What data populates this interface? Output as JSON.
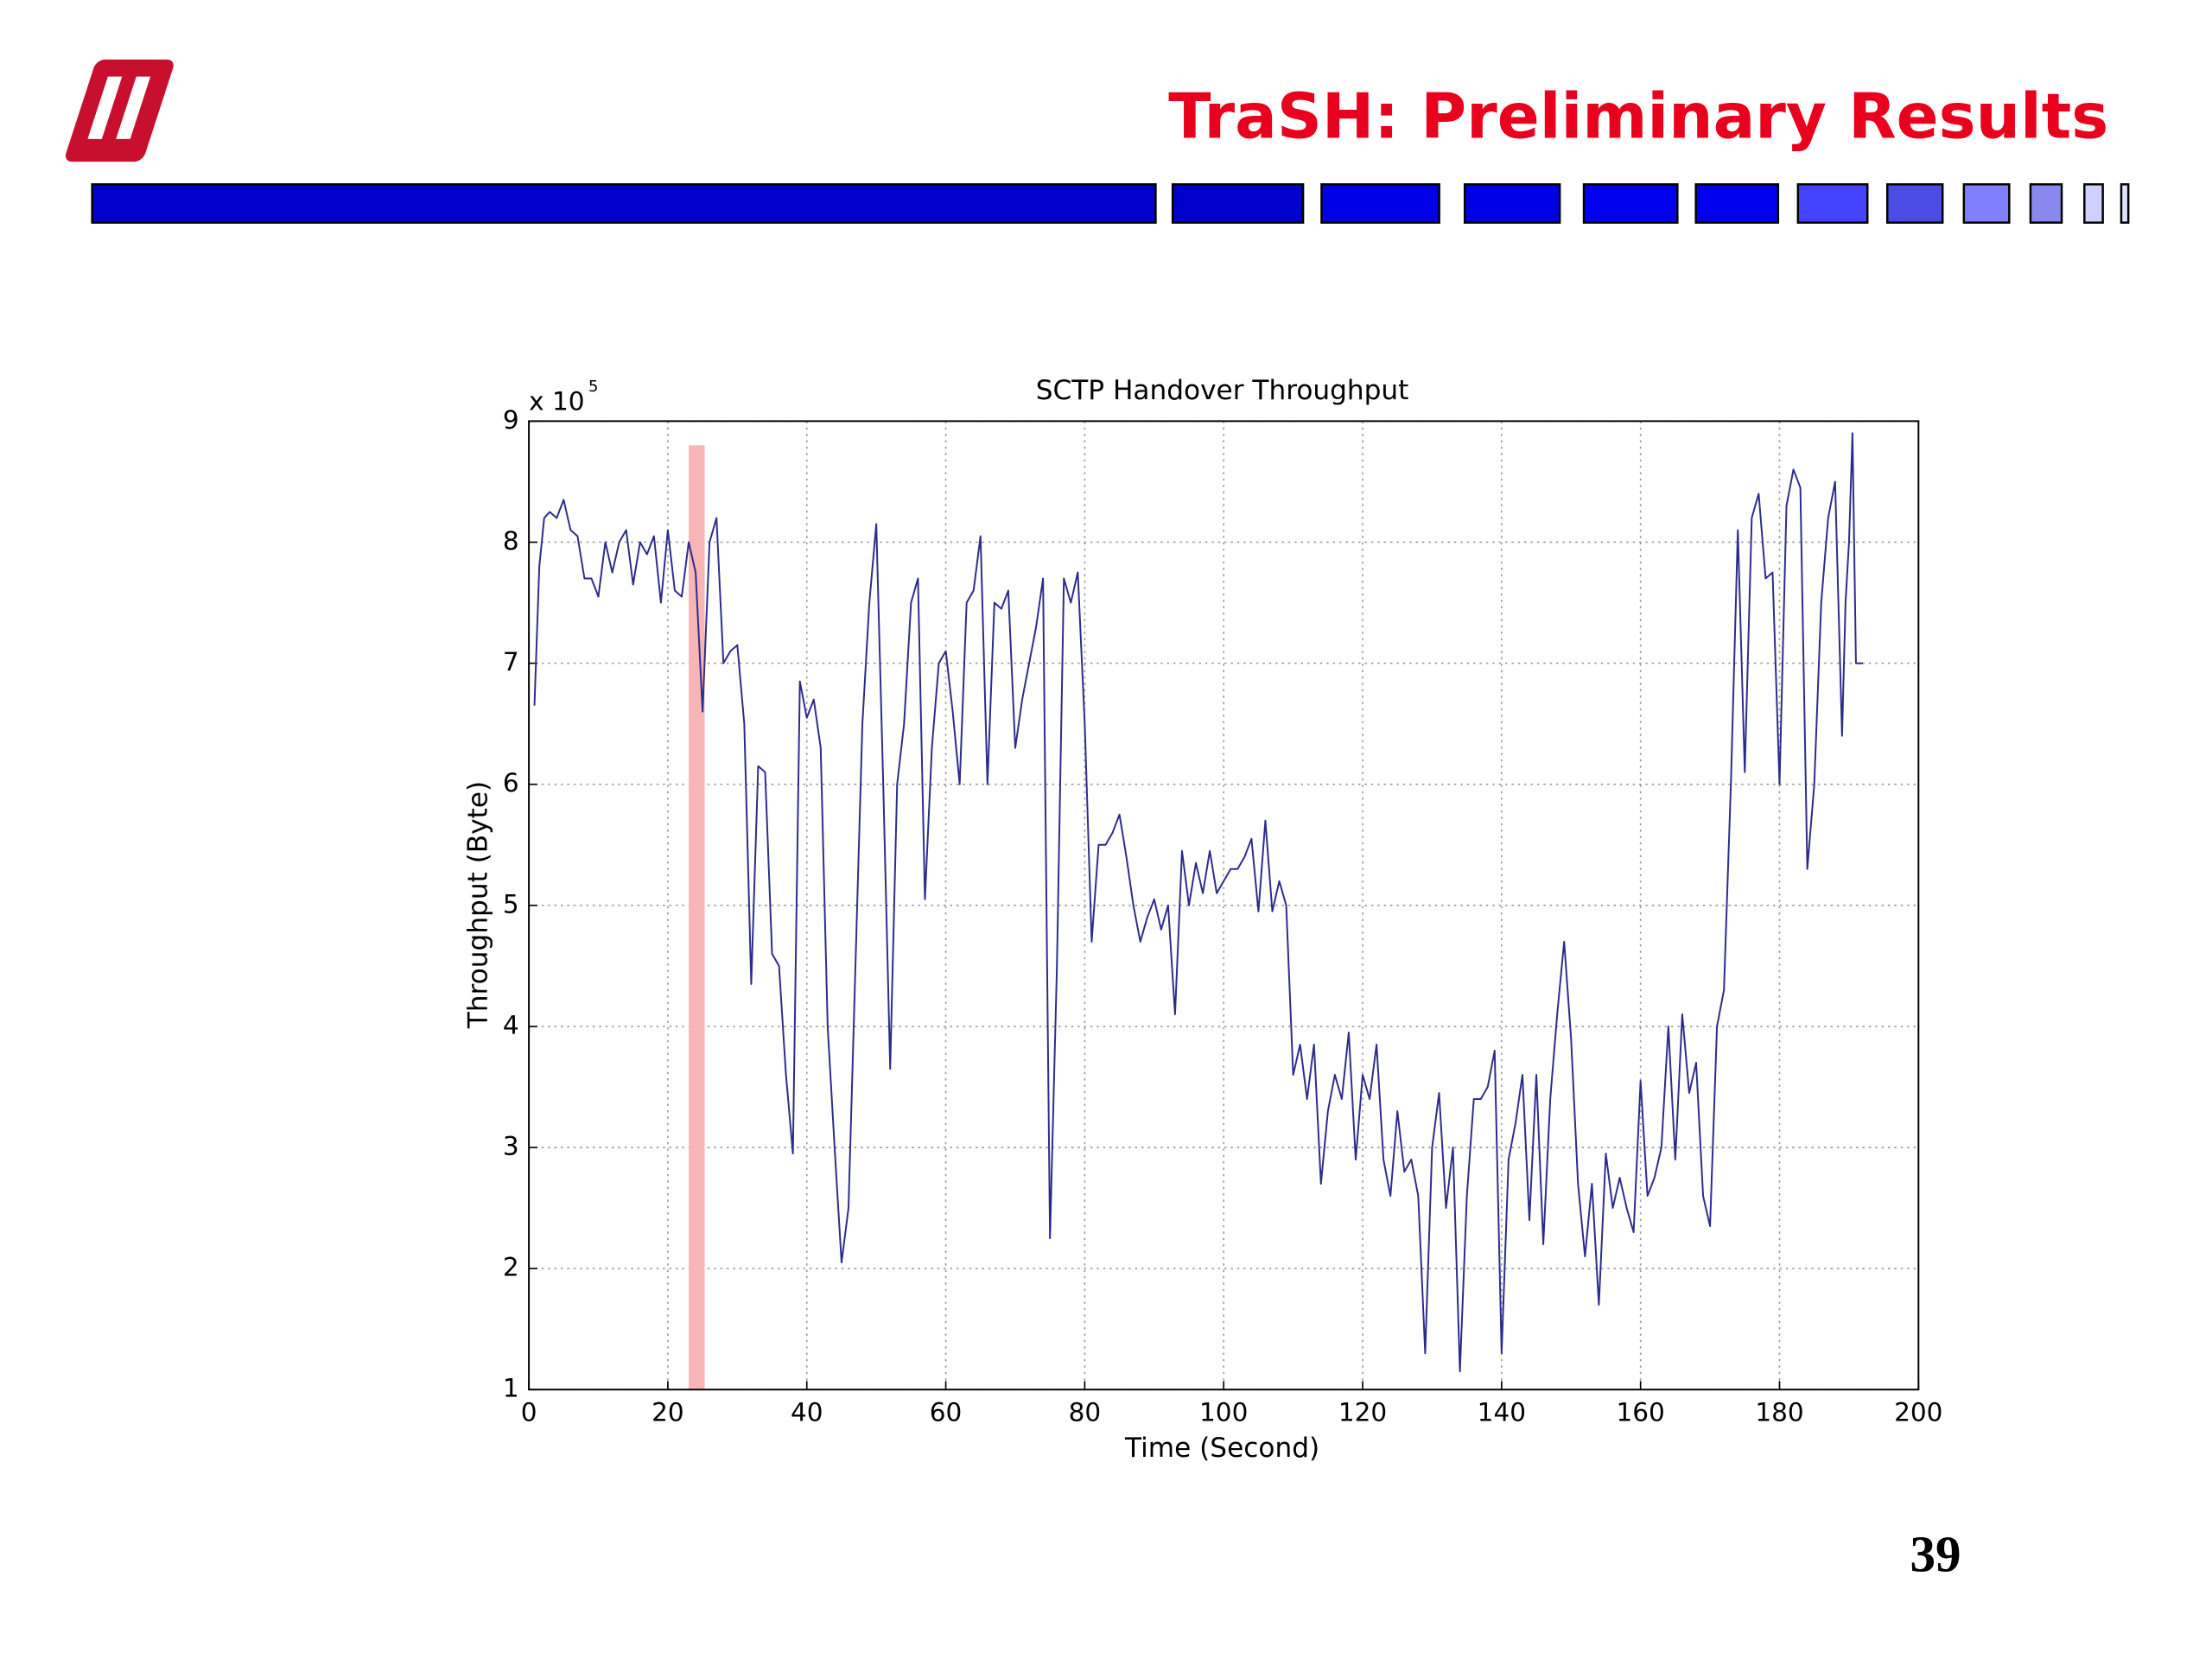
{
  "slide": {
    "title": "TraSH: Preliminary Results",
    "page_number": "39"
  },
  "chart_data": {
    "type": "line",
    "title": "SCTP Handover Throughput",
    "x_label": "Time (Second)",
    "y_label": "Throughput (Byte)",
    "y_scale_label": "x 10",
    "y_scale_exponent": "5",
    "xlim": [
      0,
      200
    ],
    "xticks": [
      0,
      20,
      40,
      60,
      80,
      100,
      120,
      140,
      160,
      180,
      200
    ],
    "ylim": [
      1,
      9
    ],
    "yticks": [
      1,
      2,
      3,
      4,
      5,
      6,
      7,
      8,
      9
    ],
    "grid": true,
    "highlight": {
      "x": [
        23,
        25.3
      ],
      "top": 8.8,
      "color": "#f7b5b5"
    },
    "x": [
      0.8,
      1.5,
      2.2,
      3,
      4,
      5,
      6,
      7,
      8,
      9,
      10,
      11,
      12,
      13,
      14,
      15,
      16,
      17,
      18,
      19,
      20,
      21,
      22,
      23,
      24,
      25,
      26,
      27,
      28,
      29,
      30,
      31,
      32,
      33,
      34,
      35,
      36,
      37,
      38,
      39,
      40,
      41,
      42,
      43,
      44,
      45,
      46,
      47,
      48,
      49,
      50,
      51,
      52,
      53,
      54,
      55,
      56,
      57,
      58,
      59,
      60,
      61,
      62,
      63,
      64,
      65,
      66,
      67,
      68,
      69,
      70,
      71,
      72,
      73,
      74,
      75,
      76,
      77,
      78,
      79,
      80,
      81,
      82,
      83,
      84,
      85,
      86,
      87,
      88,
      89,
      90,
      91,
      92,
      93,
      94,
      95,
      96,
      97,
      98,
      99,
      100,
      101,
      102,
      103,
      104,
      105,
      106,
      107,
      108,
      109,
      110,
      111,
      112,
      113,
      114,
      115,
      116,
      117,
      118,
      119,
      120,
      121,
      122,
      123,
      124,
      125,
      126,
      127,
      128,
      129,
      130,
      131,
      132,
      133,
      134,
      135,
      136,
      137,
      138,
      139,
      140,
      141,
      142,
      143,
      144,
      145,
      146,
      147,
      148,
      149,
      150,
      151,
      152,
      153,
      154,
      155,
      156,
      157,
      158,
      159,
      160,
      161,
      162,
      163,
      164,
      165,
      166,
      167,
      168,
      169,
      170,
      171,
      172,
      173,
      174,
      175,
      176,
      177,
      178,
      179,
      180,
      181,
      182,
      183,
      184,
      185,
      186,
      187,
      188,
      189,
      189.5,
      190,
      190.5,
      191,
      192
    ],
    "series": [
      {
        "color": "#2b2b8c",
        "values": [
          6.65,
          7.8,
          8.2,
          8.25,
          8.2,
          8.35,
          8.1,
          8.05,
          7.7,
          7.7,
          7.55,
          8.0,
          7.75,
          8.0,
          8.1,
          7.65,
          8.0,
          7.9,
          8.05,
          7.5,
          8.1,
          7.6,
          7.55,
          8.0,
          7.75,
          6.6,
          8.0,
          8.2,
          7.0,
          7.1,
          7.15,
          6.5,
          4.35,
          6.15,
          6.1,
          4.6,
          4.5,
          3.6,
          2.95,
          6.85,
          6.55,
          6.7,
          6.3,
          4.0,
          3.0,
          2.05,
          2.5,
          4.5,
          6.5,
          7.5,
          8.15,
          6.0,
          3.65,
          6.0,
          6.5,
          7.5,
          7.7,
          5.05,
          6.3,
          7.0,
          7.1,
          6.6,
          6.0,
          7.5,
          7.6,
          8.05,
          6.0,
          7.5,
          7.45,
          7.6,
          6.3,
          6.7,
          7.0,
          7.3,
          7.7,
          2.25,
          4.5,
          7.7,
          7.5,
          7.75,
          6.5,
          4.7,
          5.5,
          5.5,
          5.6,
          5.75,
          5.4,
          5.0,
          4.7,
          4.9,
          5.05,
          4.8,
          5.0,
          4.1,
          5.45,
          5.0,
          5.35,
          5.1,
          5.45,
          5.1,
          5.2,
          5.3,
          5.3,
          5.4,
          5.55,
          4.95,
          5.7,
          4.95,
          5.2,
          5.0,
          3.6,
          3.85,
          3.4,
          3.85,
          2.7,
          3.3,
          3.6,
          3.4,
          3.95,
          2.9,
          3.6,
          3.4,
          3.85,
          2.9,
          2.6,
          3.3,
          2.8,
          2.9,
          2.6,
          1.3,
          3.0,
          3.45,
          2.5,
          3.0,
          1.15,
          2.6,
          3.4,
          3.4,
          3.5,
          3.8,
          1.3,
          2.9,
          3.2,
          3.6,
          2.4,
          3.6,
          2.2,
          3.4,
          4.1,
          4.7,
          3.9,
          2.7,
          2.1,
          2.7,
          1.7,
          2.95,
          2.5,
          2.75,
          2.5,
          2.3,
          3.55,
          2.6,
          2.75,
          3.0,
          4.0,
          2.9,
          4.1,
          3.45,
          3.7,
          2.6,
          2.35,
          4.0,
          4.3,
          6.0,
          8.1,
          6.1,
          8.2,
          8.4,
          7.7,
          7.75,
          6.0,
          8.3,
          8.6,
          8.45,
          5.3,
          6.0,
          7.5,
          8.2,
          8.5,
          6.4,
          7.5,
          8.0,
          8.9,
          7.0,
          7.0
        ]
      }
    ]
  }
}
